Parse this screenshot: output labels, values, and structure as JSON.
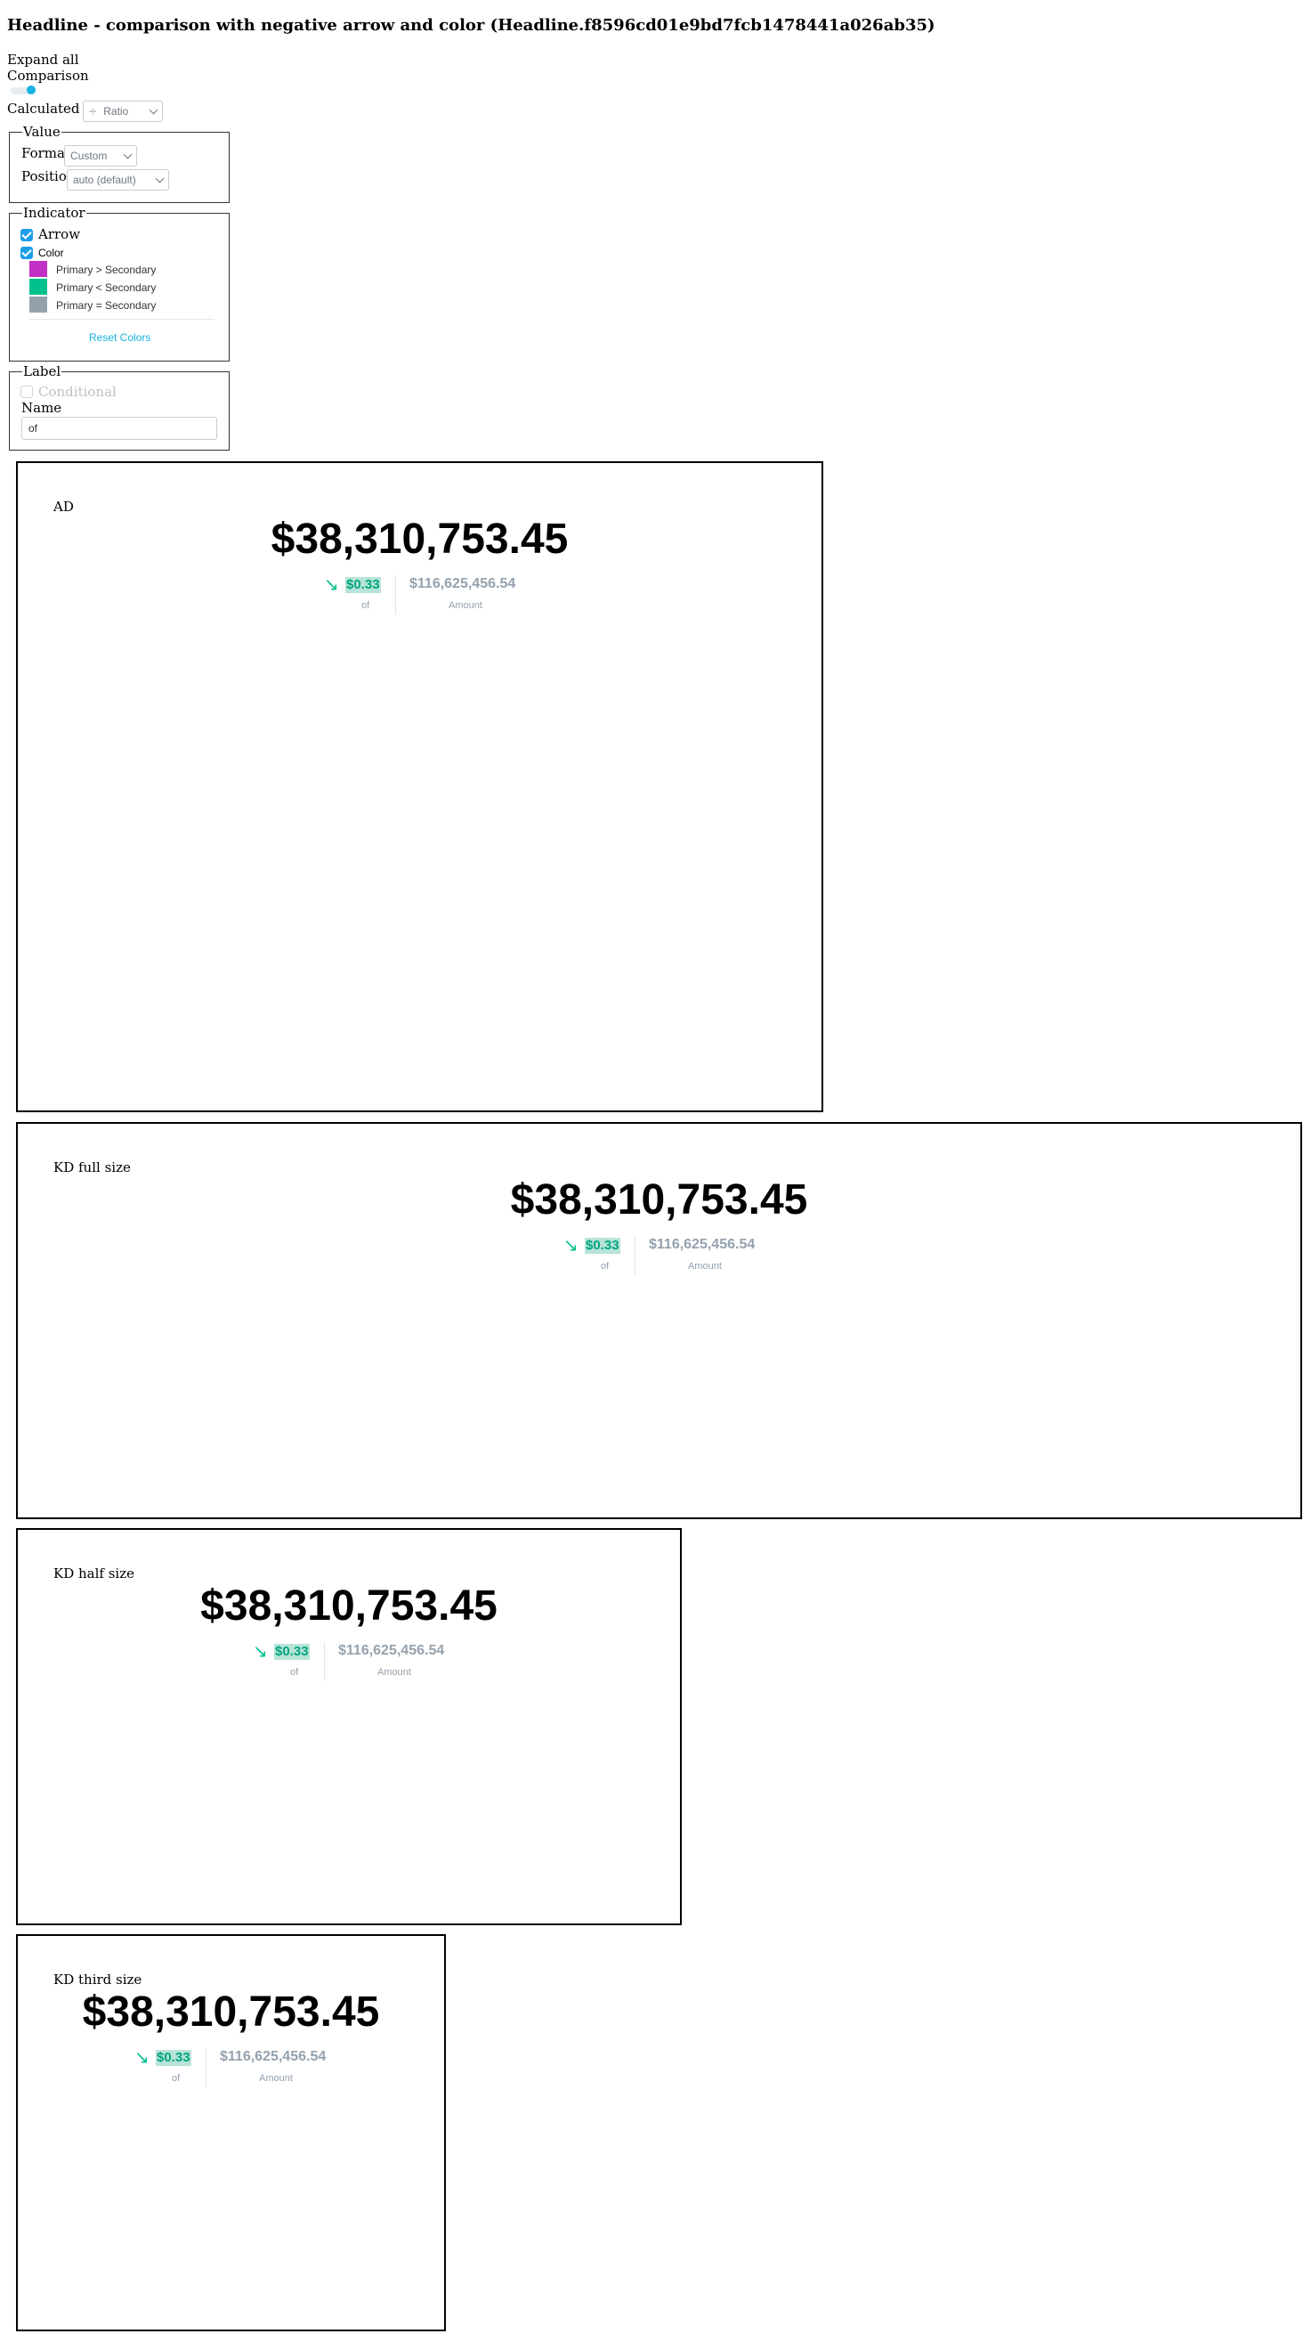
{
  "page_title": "Headline - comparison with negative arrow and color (Headline.f8596cd01e9bd7fcb1478441a026ab35)",
  "controls": {
    "expand_all": "Expand all",
    "comparison": "Comparison",
    "calculated_as_label": "Calculated as",
    "calculated_as_value": "Ratio",
    "calculated_as_icon": "divide-icon"
  },
  "value_section": {
    "legend": "Value",
    "format_label": "Format",
    "format_value": "Custom",
    "position_label": "Position",
    "position_value": "auto (default)"
  },
  "indicator_section": {
    "legend": "Indicator",
    "arrow_label": "Arrow",
    "color_label": "Color",
    "colors": [
      {
        "label": "Primary > Secondary",
        "color": "#c12fc4"
      },
      {
        "label": "Primary < Secondary",
        "color": "#00c18d"
      },
      {
        "label": "Primary = Secondary",
        "color": "#94a1ad"
      }
    ],
    "reset_label": "Reset Colors"
  },
  "label_section": {
    "legend": "Label",
    "conditional_label": "Conditional",
    "name_label": "Name",
    "name_value": "of"
  },
  "widgets": [
    {
      "title": "AD",
      "primary": "$38,310,753.45",
      "comparison": "$0.33",
      "comparison_label": "of",
      "secondary": "$116,625,456.54",
      "secondary_label": "Amount"
    },
    {
      "title": "KD full size",
      "primary": "$38,310,753.45",
      "comparison": "$0.33",
      "comparison_label": "of",
      "secondary": "$116,625,456.54",
      "secondary_label": "Amount"
    },
    {
      "title": "KD half size",
      "primary": "$38,310,753.45",
      "comparison": "$0.33",
      "comparison_label": "of",
      "secondary": "$116,625,456.54",
      "secondary_label": "Amount"
    },
    {
      "title": "KD third size",
      "primary": "$38,310,753.45",
      "comparison": "$0.33",
      "comparison_label": "of",
      "secondary": "$116,625,456.54",
      "secondary_label": "Amount"
    }
  ],
  "arrow_glyph": "↘",
  "arrow_icon": "arrow-down-right-icon"
}
